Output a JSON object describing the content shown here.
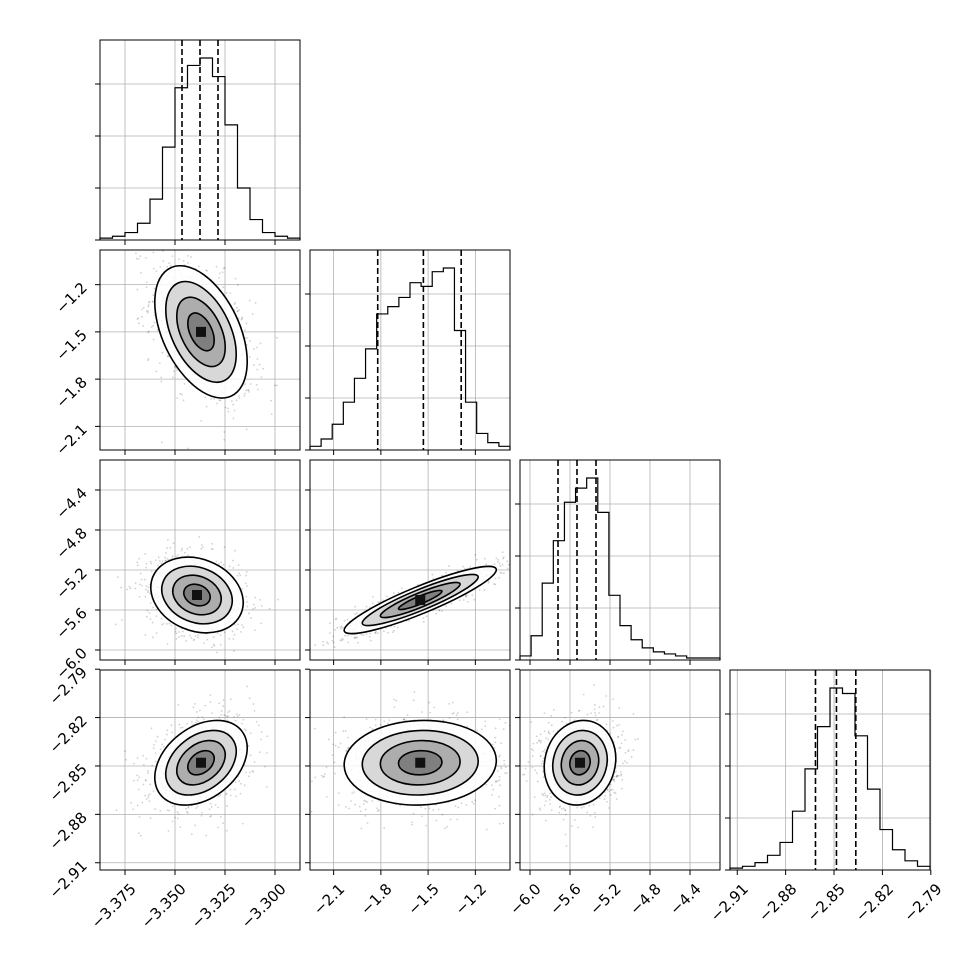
{
  "chart_data": {
    "type": "corner",
    "title": "",
    "grid": true,
    "parameters": [
      {
        "ticks": [
          -3.375,
          -3.35,
          -3.325,
          -3.3
        ],
        "tick_labels": [
          "−3.375",
          "−3.350",
          "−3.325",
          "−3.300"
        ],
        "y_ticks": [],
        "y_tick_labels": [],
        "range": [
          -3.3875,
          -3.2875
        ],
        "quantiles": [
          -3.3465,
          -3.3375,
          -3.3285
        ],
        "histogram": [
          1,
          2,
          4,
          9,
          22,
          50,
          82,
          94,
          98,
          88,
          62,
          28,
          11,
          4,
          2,
          1
        ]
      },
      {
        "ticks": [
          -2.1,
          -1.8,
          -1.5,
          -1.2
        ],
        "tick_labels": [
          "−2.1",
          "−1.8",
          "−1.5",
          "−1.2"
        ],
        "y_ticks": [
          -2.1,
          -1.8,
          -1.5,
          -1.2
        ],
        "y_tick_labels": [
          "−2.1",
          "−1.8",
          "−1.5",
          "−1.2"
        ],
        "range": [
          -2.25,
          -0.98
        ],
        "quantiles": [
          -1.82,
          -1.53,
          -1.29
        ],
        "histogram": [
          2,
          6,
          14,
          26,
          39,
          55,
          74,
          78,
          83,
          91,
          89,
          97,
          99,
          65,
          26,
          9,
          4,
          2
        ]
      },
      {
        "ticks": [
          -6.0,
          -5.6,
          -5.2,
          -4.8,
          -4.4
        ],
        "tick_labels": [
          "−6.0",
          "−5.6",
          "−5.2",
          "−4.8",
          "−4.4"
        ],
        "y_ticks": [
          -6.0,
          -5.6,
          -5.2,
          -4.8,
          -4.4
        ],
        "y_tick_labels": [
          "−6.0",
          "−5.6",
          "−5.2",
          "−4.8",
          "−4.4"
        ],
        "range": [
          -6.1,
          -4.1
        ],
        "quantiles": [
          -5.72,
          -5.53,
          -5.34
        ],
        "histogram": [
          2,
          12,
          38,
          59,
          78,
          85,
          90,
          73,
          32,
          17,
          10,
          6,
          4,
          3,
          2,
          1,
          1,
          1
        ]
      },
      {
        "ticks": [
          -2.91,
          -2.88,
          -2.85,
          -2.82,
          -2.79
        ],
        "tick_labels": [
          "−2.91",
          "−2.88",
          "−2.85",
          "−2.82",
          "−2.79"
        ],
        "y_ticks": [
          -2.91,
          -2.88,
          -2.85,
          -2.82,
          -2.79
        ],
        "y_tick_labels": [
          "−2.91",
          "−2.88",
          "−2.85",
          "−2.82",
          "−2.79"
        ],
        "range": [
          -2.9145,
          -2.7905
        ],
        "quantiles": [
          -2.8615,
          -2.8485,
          -2.8365
        ],
        "histogram": [
          1,
          2,
          4,
          8,
          15,
          32,
          55,
          78,
          99,
          96,
          73,
          44,
          22,
          11,
          5,
          2
        ]
      }
    ],
    "panels_2d": [
      {
        "row": 1,
        "col": 0,
        "center": [
          -3.337,
          -1.5
        ],
        "spread": [
          0.011,
          0.2
        ],
        "rho": -0.45
      },
      {
        "row": 2,
        "col": 0,
        "center": [
          -3.339,
          -5.45
        ],
        "spread": [
          0.011,
          0.18
        ],
        "rho": -0.2
      },
      {
        "row": 2,
        "col": 1,
        "center": [
          -1.55,
          -5.5
        ],
        "spread": [
          0.23,
          0.16
        ],
        "rho": 0.9
      },
      {
        "row": 3,
        "col": 0,
        "center": [
          -3.337,
          -2.848
        ],
        "spread": [
          0.011,
          0.0125
        ],
        "rho": 0.35
      },
      {
        "row": 3,
        "col": 1,
        "center": [
          -1.55,
          -2.848
        ],
        "spread": [
          0.23,
          0.0125
        ],
        "rho": 0.05
      },
      {
        "row": 3,
        "col": 2,
        "center": [
          -5.5,
          -2.848
        ],
        "spread": [
          0.17,
          0.0125
        ],
        "rho": 0.1
      }
    ]
  }
}
